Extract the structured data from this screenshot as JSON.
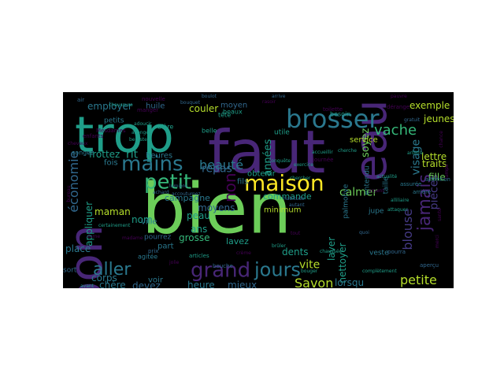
{
  "wordcloud": {
    "background": "#000000",
    "words": [
      {
        "text": "bien",
        "color": "#6ccd59"
      },
      {
        "text": "faut",
        "color": "#482677"
      },
      {
        "text": "trop",
        "color": "#1f9e89"
      },
      {
        "text": "bon",
        "color": "#482677"
      },
      {
        "text": "eau",
        "color": "#482677"
      },
      {
        "text": "brosser",
        "color": "#2a788e"
      },
      {
        "text": "maison",
        "color": "#fde725"
      },
      {
        "text": "mains",
        "color": "#2a788e"
      },
      {
        "text": "petit",
        "color": "#35b779"
      },
      {
        "text": "jours",
        "color": "#2a788e"
      },
      {
        "text": "grand",
        "color": "#482677"
      },
      {
        "text": "aller",
        "color": "#2a788e"
      },
      {
        "text": "jamais",
        "color": "#482677"
      },
      {
        "text": "non",
        "color": "#440154"
      },
      {
        "text": "vache",
        "color": "#35b779"
      },
      {
        "text": "petite",
        "color": "#b5de2b"
      },
      {
        "text": "beauté",
        "color": "#2a788e"
      },
      {
        "text": "repas",
        "color": "#31688e"
      },
      {
        "text": "économie",
        "color": "#31688e"
      },
      {
        "text": "rit",
        "color": "#1f9e89"
      },
      {
        "text": "Savon",
        "color": "#b5de2b"
      },
      {
        "text": "vite",
        "color": "#b5de2b"
      },
      {
        "text": "calmer",
        "color": "#6ccd59"
      },
      {
        "text": "blouse",
        "color": "#443983"
      },
      {
        "text": "pièces",
        "color": "#443983"
      },
      {
        "text": "visage",
        "color": "#2a788e"
      },
      {
        "text": "soyez",
        "color": "#6ccd59"
      },
      {
        "text": "années",
        "color": "#1f9e89"
      },
      {
        "text": "appliquer",
        "color": "#1f9e89"
      },
      {
        "text": "frottez",
        "color": "#1f9e89"
      },
      {
        "text": "couler",
        "color": "#b5de2b"
      },
      {
        "text": "moyens",
        "color": "#31688e"
      },
      {
        "text": "employer",
        "color": "#2a788e"
      },
      {
        "text": "exemple",
        "color": "#b5de2b"
      },
      {
        "text": "fille",
        "color": "#6ccd59"
      },
      {
        "text": "lettre",
        "color": "#b5de2b"
      },
      {
        "text": "traits",
        "color": "#b5de2b"
      },
      {
        "text": "jeunes",
        "color": "#b5de2b"
      },
      {
        "text": "laver",
        "color": "#1f9e89"
      },
      {
        "text": "nettoyer",
        "color": "#1f9e89"
      },
      {
        "text": "lorsqu",
        "color": "#2a788e"
      },
      {
        "text": "dents",
        "color": "#1f9e89"
      },
      {
        "text": "mieux",
        "color": "#31688e"
      },
      {
        "text": "heure",
        "color": "#2a788e"
      },
      {
        "text": "devez",
        "color": "#31688e"
      },
      {
        "text": "chère",
        "color": "#2a788e"
      },
      {
        "text": "corps",
        "color": "#2a788e"
      },
      {
        "text": "place",
        "color": "#2a788e"
      },
      {
        "text": "campagne",
        "color": "#2a788e"
      },
      {
        "text": "peau",
        "color": "#1f9e89"
      },
      {
        "text": "maman",
        "color": "#b5de2b"
      },
      {
        "text": "nom",
        "color": "#1f9e89"
      },
      {
        "text": "ans",
        "color": "#1f9e89"
      },
      {
        "text": "lavez",
        "color": "#1f9e89"
      },
      {
        "text": "grosse",
        "color": "#35b779"
      },
      {
        "text": "service",
        "color": "#b5de2b"
      },
      {
        "text": "commande",
        "color": "#1f9e89"
      },
      {
        "text": "minimum",
        "color": "#b5de2b"
      },
      {
        "text": "obtenir",
        "color": "#1f9e89"
      },
      {
        "text": "heures",
        "color": "#2a788e"
      },
      {
        "text": "fois",
        "color": "#2a788e"
      },
      {
        "text": "huile",
        "color": "#31688e"
      },
      {
        "text": "moyen",
        "color": "#31688e"
      },
      {
        "text": "petits",
        "color": "#2a788e"
      },
      {
        "text": "fils",
        "color": "#2a788e"
      },
      {
        "text": "palmolive",
        "color": "#2a788e"
      },
      {
        "text": "entendu",
        "color": "#2a788e"
      },
      {
        "text": "taille",
        "color": "#2a788e"
      },
      {
        "text": "jupe",
        "color": "#2a788e"
      },
      {
        "text": "veste",
        "color": "#2a788e"
      },
      {
        "text": "ville",
        "color": "#2a788e"
      },
      {
        "text": "part",
        "color": "#2a788e"
      },
      {
        "text": "voir",
        "color": "#2a788e"
      },
      {
        "text": "sort",
        "color": "#31688e"
      },
      {
        "text": "pourrez",
        "color": "#31688e"
      },
      {
        "text": "tête",
        "color": "#1f9e89"
      },
      {
        "text": "utile",
        "color": "#1f9e89"
      },
      {
        "text": "songez",
        "color": "#2a788e"
      },
      {
        "text": "belle",
        "color": "#1f9e89"
      },
      {
        "text": "bière",
        "color": "#1f9e89"
      },
      {
        "text": "beaux",
        "color": "#1f9e89"
      },
      {
        "text": "besoin",
        "color": "#1f9e89"
      },
      {
        "text": "arrière",
        "color": "#2a788e"
      },
      {
        "text": "attention",
        "color": "#2a788e"
      },
      {
        "text": "assurée",
        "color": "#2a788e"
      },
      {
        "text": "agitée",
        "color": "#2a788e"
      },
      {
        "text": "articles",
        "color": "#1f9e89"
      },
      {
        "text": "bouche",
        "color": "#31688e"
      },
      {
        "text": "pourra",
        "color": "#31688e"
      },
      {
        "text": "aperçu",
        "color": "#31688e"
      },
      {
        "text": "prix",
        "color": "#31688e"
      },
      {
        "text": "air",
        "color": "#31688e"
      },
      {
        "text": "nouvelle",
        "color": "#440154"
      },
      {
        "text": "Mesdames",
        "color": "#440154"
      },
      {
        "text": "enfants",
        "color": "#440154"
      },
      {
        "text": "manger",
        "color": "#440154"
      },
      {
        "text": "rasoir",
        "color": "#440154"
      },
      {
        "text": "journée",
        "color": "#440154"
      },
      {
        "text": "toilette",
        "color": "#440154"
      },
      {
        "text": "dérange",
        "color": "#440154"
      },
      {
        "text": "chance",
        "color": "#440154"
      },
      {
        "text": "lampe",
        "color": "#440154"
      },
      {
        "text": "bureau",
        "color": "#440154"
      },
      {
        "text": "merci",
        "color": "#440154"
      },
      {
        "text": "santé",
        "color": "#440154"
      },
      {
        "text": "cheveux",
        "color": "#440154"
      },
      {
        "text": "dame",
        "color": "#440154"
      },
      {
        "text": "madame",
        "color": "#440154"
      },
      {
        "text": "jolie",
        "color": "#440154"
      },
      {
        "text": "crème",
        "color": "#440154"
      },
      {
        "text": "tout",
        "color": "#440154"
      },
      {
        "text": "pauvre",
        "color": "#440154"
      },
      {
        "text": "argent",
        "color": "#440154"
      },
      {
        "text": "alliliaire",
        "color": "#1f9e89"
      },
      {
        "text": "chaussure",
        "color": "#1f9e89"
      },
      {
        "text": "adoucir",
        "color": "#1f9e89"
      },
      {
        "text": "allongée",
        "color": "#1f9e89"
      },
      {
        "text": "bernstein",
        "color": "#1f9e89"
      },
      {
        "text": "actualité",
        "color": "#1f9e89"
      },
      {
        "text": "certainement",
        "color": "#1f9e89"
      },
      {
        "text": "chercher",
        "color": "#1f9e89"
      },
      {
        "text": "cherche",
        "color": "#1f9e89"
      },
      {
        "text": "achard",
        "color": "#31688e"
      },
      {
        "text": "accoutumez",
        "color": "#31688e"
      },
      {
        "text": "habitude",
        "color": "#31688e"
      },
      {
        "text": "autant",
        "color": "#31688e"
      },
      {
        "text": "conquête",
        "color": "#1f9e89"
      },
      {
        "text": "exercice",
        "color": "#1f9e89"
      },
      {
        "text": "accueillir",
        "color": "#1f9e89"
      },
      {
        "text": "arbitre",
        "color": "#1f9e89"
      },
      {
        "text": "attaquer",
        "color": "#1f9e89"
      },
      {
        "text": "avant",
        "color": "#1f9e89"
      },
      {
        "text": "après",
        "color": "#1f9e89"
      },
      {
        "text": "brûler",
        "color": "#1f9e89"
      },
      {
        "text": "bouger",
        "color": "#1f9e89"
      },
      {
        "text": "complètement",
        "color": "#1f9e89"
      },
      {
        "text": "chaussée",
        "color": "#1f9e89"
      },
      {
        "text": "lumière",
        "color": "#31688e"
      },
      {
        "text": "bouquet",
        "color": "#31688e"
      },
      {
        "text": "boulot",
        "color": "#31688e"
      },
      {
        "text": "arrive",
        "color": "#31688e"
      },
      {
        "text": "quoi",
        "color": "#31688e"
      },
      {
        "text": "gratuit",
        "color": "#31688e"
      },
      {
        "text": "douce",
        "color": "#31688e"
      },
      {
        "text": "dix",
        "color": "#31688e"
      }
    ]
  }
}
